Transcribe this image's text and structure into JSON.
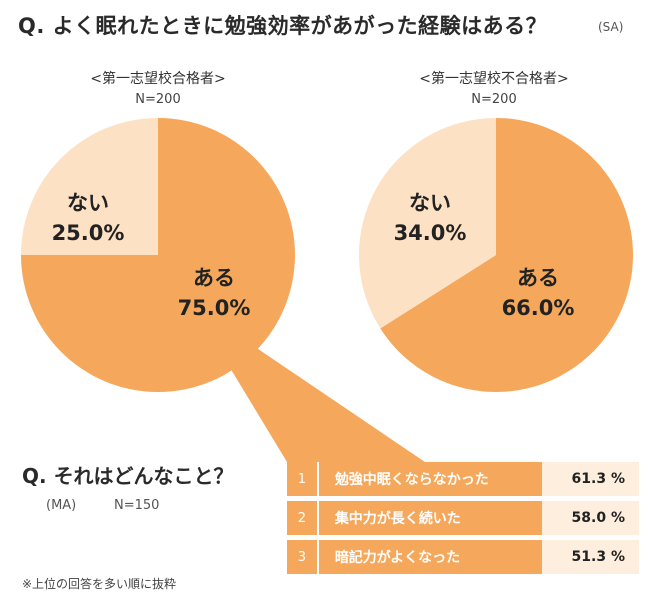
{
  "header": {
    "question": "Q. よく眠れたときに勉強効率があがった経験はある？",
    "tag": "(SA)"
  },
  "chart_data": [
    {
      "type": "pie",
      "title": "<第一志望校合格者>",
      "n_label": "N=200",
      "slices": [
        {
          "label": "ある",
          "value": 75.0,
          "value_label": "75.0%",
          "color": "#f5a85c"
        },
        {
          "label": "ない",
          "value": 25.0,
          "value_label": "25.0%",
          "color": "#fde1c4"
        }
      ]
    },
    {
      "type": "pie",
      "title": "<第一志望校不合格者>",
      "n_label": "N=200",
      "slices": [
        {
          "label": "ある",
          "value": 66.0,
          "value_label": "66.0%",
          "color": "#f5a85c"
        },
        {
          "label": "ない",
          "value": 34.0,
          "value_label": "34.0%",
          "color": "#fde1c4"
        }
      ]
    }
  ],
  "sub": {
    "question": "Q. それはどんなこと？",
    "tag": "(MA)",
    "n_label": "N=150",
    "footnote": "※上位の回答を多い順に抜粋",
    "rows": [
      {
        "rank": "1",
        "label": "勉強中眠くならなかった",
        "value": "61.3 %"
      },
      {
        "rank": "2",
        "label": "集中力が長く続いた",
        "value": "58.0 %"
      },
      {
        "rank": "3",
        "label": "暗記力がよくなった",
        "value": "51.3 %"
      }
    ]
  }
}
